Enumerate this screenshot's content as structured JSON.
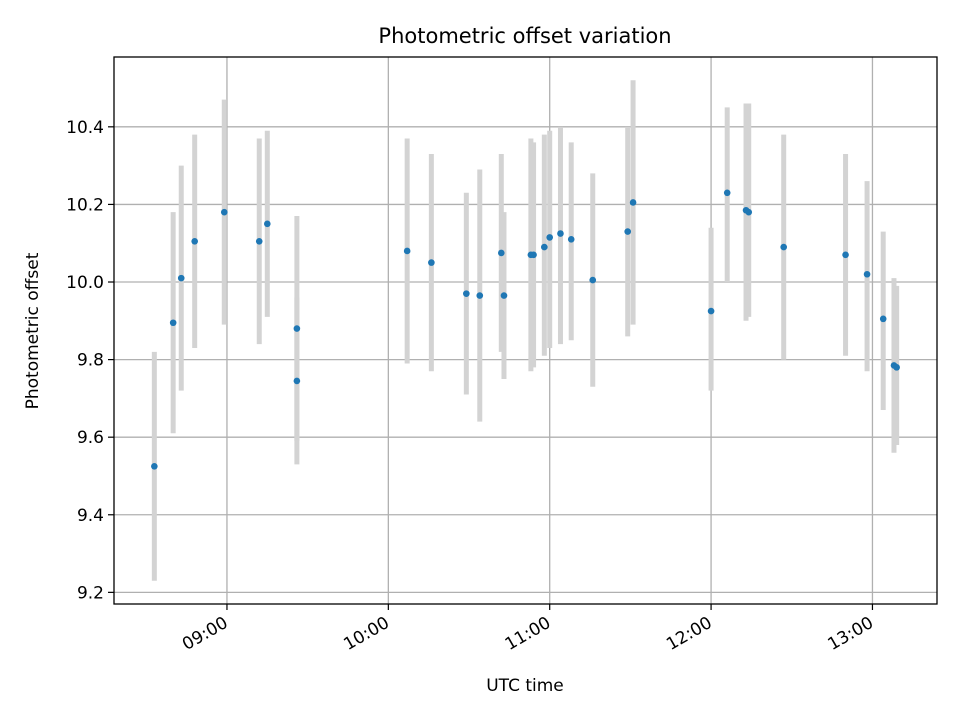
{
  "chart_data": {
    "type": "scatter",
    "title": "Photometric offset variation",
    "xlabel": "UTC time",
    "ylabel": "Photometric offset",
    "x_ticks": [
      "09:00",
      "10:00",
      "11:00",
      "12:00",
      "13:00"
    ],
    "y_ticks": [
      "9.2",
      "9.4",
      "9.6",
      "9.8",
      "10.0",
      "10.2",
      "10.4"
    ],
    "xlim": [
      "08:18",
      "13:24"
    ],
    "ylim": [
      9.17,
      10.58
    ],
    "grid": true,
    "legend": "none",
    "colors": {
      "point": "#1f77b4",
      "errorbar": "#d3d3d3",
      "grid": "#b0b0b0"
    },
    "points": [
      {
        "x": "08:33",
        "y": 9.525,
        "lo": 9.23,
        "hi": 9.82
      },
      {
        "x": "08:40",
        "y": 9.895,
        "lo": 9.61,
        "hi": 10.18
      },
      {
        "x": "08:43",
        "y": 10.01,
        "lo": 9.72,
        "hi": 10.3
      },
      {
        "x": "08:48",
        "y": 10.105,
        "lo": 9.83,
        "hi": 10.38
      },
      {
        "x": "08:59",
        "y": 10.18,
        "lo": 9.89,
        "hi": 10.47
      },
      {
        "x": "09:12",
        "y": 10.105,
        "lo": 9.84,
        "hi": 10.37
      },
      {
        "x": "09:15",
        "y": 10.15,
        "lo": 9.91,
        "hi": 10.39
      },
      {
        "x": "09:26",
        "y": 9.88,
        "lo": 9.59,
        "hi": 10.17
      },
      {
        "x": "09:26",
        "y": 9.745,
        "lo": 9.53,
        "hi": 9.96
      },
      {
        "x": "10:07",
        "y": 10.08,
        "lo": 9.79,
        "hi": 10.37
      },
      {
        "x": "10:16",
        "y": 10.05,
        "lo": 9.77,
        "hi": 10.33
      },
      {
        "x": "10:29",
        "y": 9.97,
        "lo": 9.71,
        "hi": 10.23
      },
      {
        "x": "10:34",
        "y": 9.965,
        "lo": 9.64,
        "hi": 10.29
      },
      {
        "x": "10:42",
        "y": 10.075,
        "lo": 9.82,
        "hi": 10.33
      },
      {
        "x": "10:43",
        "y": 9.965,
        "lo": 9.75,
        "hi": 10.18
      },
      {
        "x": "10:53",
        "y": 10.07,
        "lo": 9.77,
        "hi": 10.37
      },
      {
        "x": "10:54",
        "y": 10.07,
        "lo": 9.78,
        "hi": 10.36
      },
      {
        "x": "10:58",
        "y": 10.09,
        "lo": 9.81,
        "hi": 10.38
      },
      {
        "x": "11:00",
        "y": 10.115,
        "lo": 9.83,
        "hi": 10.39
      },
      {
        "x": "11:04",
        "y": 10.125,
        "lo": 9.84,
        "hi": 10.4
      },
      {
        "x": "11:08",
        "y": 10.11,
        "lo": 9.85,
        "hi": 10.36
      },
      {
        "x": "11:16",
        "y": 10.005,
        "lo": 9.73,
        "hi": 10.28
      },
      {
        "x": "11:29",
        "y": 10.13,
        "lo": 9.86,
        "hi": 10.4
      },
      {
        "x": "11:31",
        "y": 10.205,
        "lo": 9.89,
        "hi": 10.52
      },
      {
        "x": "12:00",
        "y": 9.925,
        "lo": 9.72,
        "hi": 10.14
      },
      {
        "x": "12:06",
        "y": 10.23,
        "lo": 10.0,
        "hi": 10.45
      },
      {
        "x": "12:13",
        "y": 10.185,
        "lo": 9.9,
        "hi": 10.46
      },
      {
        "x": "12:14",
        "y": 10.18,
        "lo": 9.91,
        "hi": 10.46
      },
      {
        "x": "12:27",
        "y": 10.09,
        "lo": 9.8,
        "hi": 10.38
      },
      {
        "x": "12:50",
        "y": 10.07,
        "lo": 9.81,
        "hi": 10.33
      },
      {
        "x": "12:58",
        "y": 10.02,
        "lo": 9.77,
        "hi": 10.26
      },
      {
        "x": "13:04",
        "y": 9.905,
        "lo": 9.67,
        "hi": 10.13
      },
      {
        "x": "13:08",
        "y": 9.785,
        "lo": 9.56,
        "hi": 10.01
      },
      {
        "x": "13:09",
        "y": 9.78,
        "lo": 9.58,
        "hi": 9.99
      }
    ]
  }
}
